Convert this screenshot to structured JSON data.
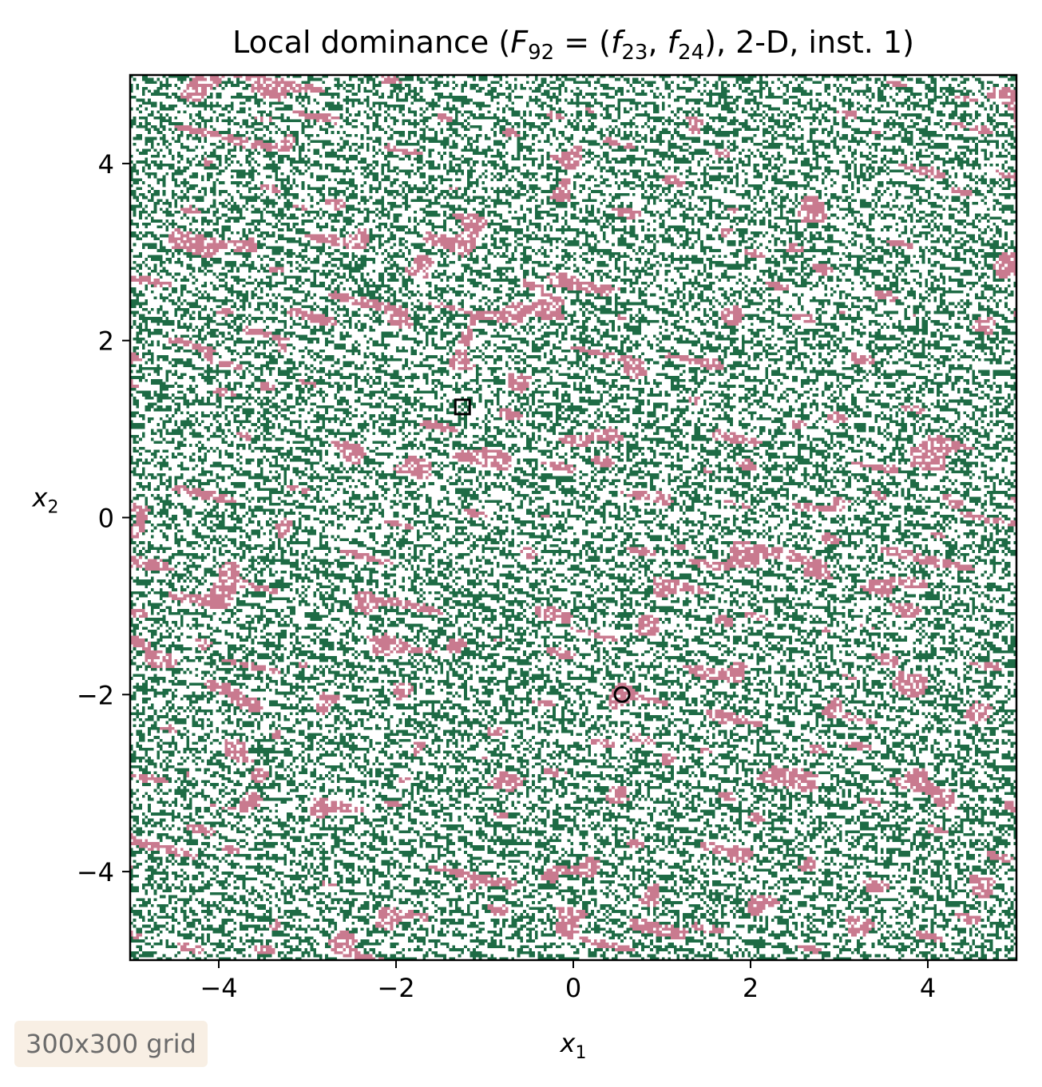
{
  "chart_data": {
    "type": "heatmap",
    "title": {
      "prefix": "Local dominance (",
      "F": "F",
      "F_sub": "92",
      "eq": " = (",
      "f1": "f",
      "f1_sub": "23",
      "comma": ", ",
      "f2": "f",
      "f2_sub": "24",
      "suffix": "), 2-D, inst. 1)"
    },
    "xlabel": {
      "var": "x",
      "sub": "1"
    },
    "ylabel": {
      "var": "x",
      "sub": "2"
    },
    "xlim": [
      -5,
      5
    ],
    "ylim": [
      -5,
      5
    ],
    "xticks": [
      -4,
      -2,
      0,
      2,
      4
    ],
    "yticks": [
      -4,
      -2,
      0,
      2,
      4
    ],
    "xtick_labels": [
      "−4",
      "−2",
      "0",
      "2",
      "4"
    ],
    "ytick_labels": [
      "−4",
      "−2",
      "0",
      "2",
      "4"
    ],
    "grid_resolution": [
      300,
      300
    ],
    "classes": [
      {
        "key": "dominated",
        "color": "#ffffff"
      },
      {
        "key": "locally-efficient",
        "color": "#1e6b45"
      },
      {
        "key": "local-optimum-basin",
        "color": "#c97a8f"
      }
    ],
    "markers": [
      {
        "shape": "square",
        "x": -1.25,
        "y": 1.25
      },
      {
        "shape": "circle",
        "x": 0.55,
        "y": -2.0
      }
    ],
    "colors": {
      "green": "#1e6b45",
      "pink": "#c97a8f",
      "background": "#ffffff"
    }
  },
  "badge": {
    "text": "300x300 grid"
  }
}
